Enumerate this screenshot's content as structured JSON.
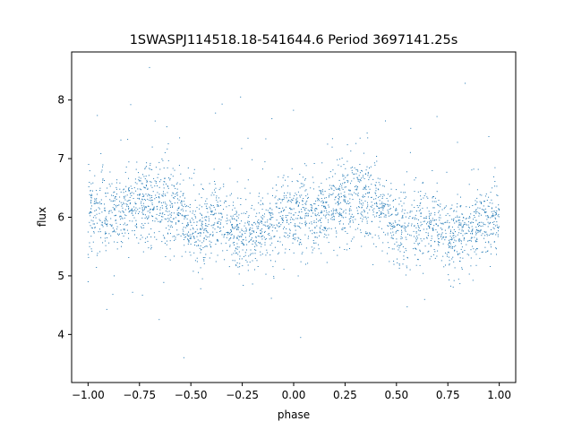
{
  "chart_data": {
    "type": "scatter",
    "title": "1SWASPJ114518.18-541644.6 Period 3697141.25s",
    "xlabel": "phase",
    "ylabel": "flux",
    "xlim": [
      -1.08,
      1.08
    ],
    "ylim": [
      3.18,
      8.82
    ],
    "xticks": [
      -1.0,
      -0.75,
      -0.5,
      -0.25,
      0.0,
      0.25,
      0.5,
      0.75,
      1.0
    ],
    "xtick_labels": [
      "−1.00",
      "−0.75",
      "−0.50",
      "−0.25",
      "0.00",
      "0.25",
      "0.50",
      "0.75",
      "1.00"
    ],
    "yticks": [
      4,
      5,
      6,
      7,
      8
    ],
    "ytick_labels": [
      "4",
      "5",
      "6",
      "7",
      "8"
    ],
    "grid": false,
    "marker_color": "#1f77b4",
    "phase_profile": {
      "phase": [
        0.0,
        0.05,
        0.1,
        0.15,
        0.2,
        0.25,
        0.3,
        0.35,
        0.4,
        0.45,
        0.5,
        0.55,
        0.6,
        0.65,
        0.7,
        0.75,
        0.8,
        0.85,
        0.9,
        0.95,
        1.0
      ],
      "flux_center": [
        6.0,
        6.15,
        6.05,
        6.1,
        6.2,
        6.25,
        6.3,
        6.25,
        6.2,
        6.05,
        5.8,
        5.75,
        5.9,
        5.95,
        5.85,
        5.65,
        5.7,
        5.8,
        5.9,
        6.0,
        6.0
      ],
      "flux_spread": [
        0.55,
        0.6,
        0.5,
        0.5,
        0.55,
        0.6,
        0.65,
        0.6,
        0.6,
        0.55,
        0.5,
        0.55,
        0.6,
        0.5,
        0.45,
        0.5,
        0.5,
        0.5,
        0.5,
        0.55,
        0.55
      ]
    }
  }
}
